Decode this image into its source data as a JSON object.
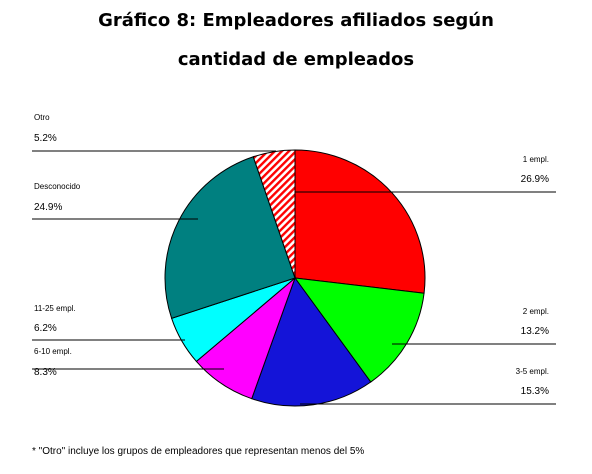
{
  "chart_data": {
    "type": "pie",
    "title_line1": "Gráfico 8: Empleadores afiliados según",
    "title_line2": "cantidad de empleados",
    "slices": [
      {
        "label": "1 empl.",
        "value_text": "26.9%",
        "value": 26.9,
        "color": "#ff0000"
      },
      {
        "label": "2 empl.",
        "value_text": "13.2%",
        "value": 13.2,
        "color": "#00ff00"
      },
      {
        "label": "3-5 empl.",
        "value_text": "15.3%",
        "value": 15.3,
        "color": "#1414d8"
      },
      {
        "label": "6-10 empl.",
        "value_text": "8.3%",
        "value": 8.3,
        "color": "#ff00ff"
      },
      {
        "label": "11-25 empl.",
        "value_text": "6.2%",
        "value": 6.2,
        "color": "#00ffff"
      },
      {
        "label": "Desconocido",
        "value_text": "24.9%",
        "value": 24.9,
        "color": "#008080"
      },
      {
        "label": "Otro",
        "value_text": "5.2%",
        "value": 5.2,
        "color": "#ff0000",
        "pattern": "diagonal-hatch"
      }
    ],
    "footnote": "* \"Otro\" incluye los grupos de empleadores que representan menos del 5%"
  }
}
